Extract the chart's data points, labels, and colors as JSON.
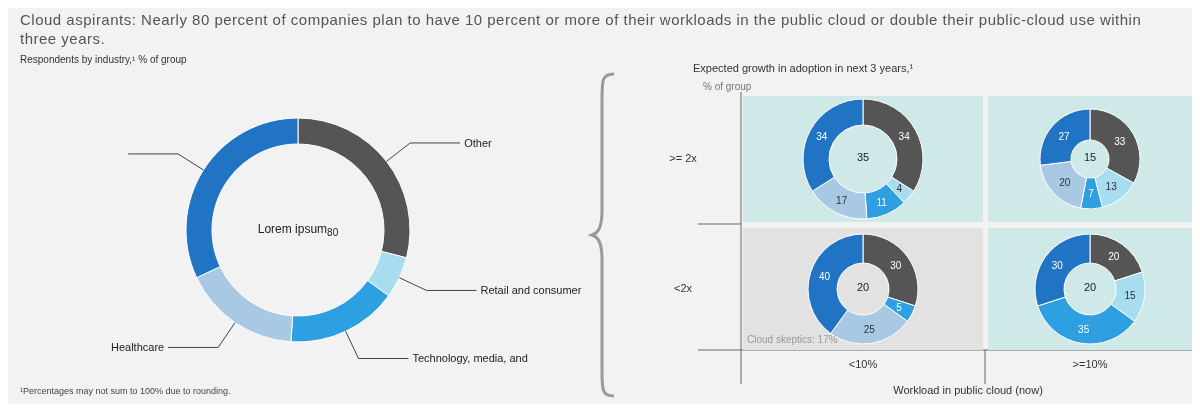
{
  "chart_data": [
    {
      "type": "donut",
      "title": "Cloud aspirants: Nearly 80 percent of companies plan to have 10 percent or more of their workloads in the public cloud or double their public-cloud use within three years.",
      "subtitle": "Respondents by industry,¹ % of group",
      "categories": [
        "Other",
        "Retail and consumer",
        "Technology, media, and",
        "Healthcare",
        null
      ],
      "values": [
        29,
        6,
        16,
        17,
        32
      ],
      "colors": [
        "#555555",
        "#a8dcef",
        "#2e9fe0",
        "#a9c8e3",
        "#2173c4"
      ],
      "annotations": [
        "Lorem ipsum$_{80}$",
        "¹Percentages may not sum to 100% due to rounding."
      ]
    },
    {
      "type": "donut",
      "title": "Expected growth in adoption in next 3 years,¹",
      "subtitle": "% of group",
      "ylabel": ">= 2x",
      "categories": [
        null,
        null,
        null,
        null,
        null
      ],
      "values": [
        34,
        4,
        11,
        17,
        34
      ],
      "colors": [
        "#555555",
        "#a8dcef",
        "#2e9fe0",
        "#a9c8e3",
        "#2173c4"
      ],
      "data_labels": true,
      "annotations": [
        "35"
      ]
    },
    {
      "type": "donut",
      "categories": [
        null,
        null,
        null,
        null,
        null
      ],
      "values": [
        33,
        13,
        7,
        20,
        27
      ],
      "colors": [
        "#555555",
        "#a8dcef",
        "#2e9fe0",
        "#a9c8e3",
        "#2173c4"
      ],
      "data_labels": true,
      "annotations": [
        "15"
      ]
    },
    {
      "type": "donut",
      "ylabel": "<2x",
      "xlabel": "<10%",
      "categories": [
        null,
        null,
        null,
        null
      ],
      "values": [
        30,
        5,
        25,
        40
      ],
      "colors": [
        "#555555",
        "#2e9fe0",
        "#a9c8e3",
        "#2173c4"
      ],
      "data_labels": true,
      "annotations": [
        "20",
        "Cloud skeptics: 17%"
      ]
    },
    {
      "type": "donut",
      "xlabel": ">=10%",
      "categories": [
        null,
        null,
        null,
        null
      ],
      "values": [
        20,
        15,
        35,
        30
      ],
      "colors": [
        "#555555",
        "#a8dcef",
        "#2e9fe0",
        "#2173c4"
      ],
      "data_labels": true,
      "annotations": [
        "20",
        "Workload in public cloud (now)"
      ]
    }
  ]
}
